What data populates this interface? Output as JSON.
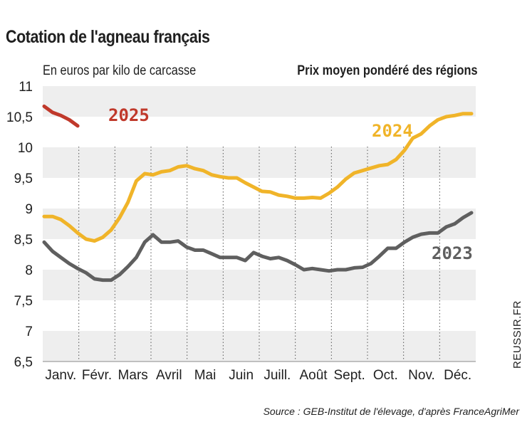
{
  "header": {
    "title": "Cotation de l'agneau français",
    "subtitle_left": "En euros par kilo de carcasse",
    "subtitle_right": "Prix moyen pondéré des régions"
  },
  "footer": {
    "source": "Source : GEB-Institut de l'élevage, d'après FranceAgriMer",
    "credit": "REUSSIR.FR"
  },
  "colors": {
    "s2023": "#5f5f5f",
    "s2024": "#f0b429",
    "s2025": "#c0392b",
    "band": "#eeeeee"
  },
  "chart_data": {
    "type": "line",
    "title": "Cotation de l'agneau français",
    "ylabel": "En euros par kilo de carcasse",
    "xlabel": "",
    "ylim": [
      6.5,
      11
    ],
    "yticks": [
      11,
      10.5,
      10,
      9.5,
      9,
      8.5,
      8,
      7.5,
      7,
      6.5
    ],
    "ytick_labels": [
      "11",
      "10,5",
      "10",
      "9,5",
      "9",
      "8,5",
      "8",
      "7,5",
      "7",
      "6,5"
    ],
    "categories": [
      "Janv.",
      "Févr.",
      "Mars",
      "Avril",
      "Mai",
      "Juin",
      "Juill.",
      "Août",
      "Sept.",
      "Oct.",
      "Nov.",
      "Déc."
    ],
    "x_unit": "week",
    "xlim": [
      1,
      52
    ],
    "series": [
      {
        "name": "2023",
        "label": "2023",
        "x": [
          1,
          2,
          3,
          4,
          5,
          6,
          7,
          8,
          9,
          10,
          11,
          12,
          13,
          14,
          15,
          16,
          17,
          18,
          19,
          20,
          21,
          22,
          23,
          24,
          25,
          26,
          27,
          28,
          29,
          30,
          31,
          32,
          33,
          34,
          35,
          36,
          37,
          38,
          39,
          40,
          41,
          42,
          43,
          44,
          45,
          46,
          47,
          48,
          49,
          50,
          51,
          52
        ],
        "values": [
          8.45,
          8.3,
          8.2,
          8.1,
          8.02,
          7.95,
          7.85,
          7.83,
          7.83,
          7.92,
          8.05,
          8.2,
          8.45,
          8.57,
          8.45,
          8.45,
          8.47,
          8.37,
          8.32,
          8.32,
          8.26,
          8.2,
          8.2,
          8.2,
          8.15,
          8.28,
          8.22,
          8.18,
          8.2,
          8.15,
          8.08,
          8.0,
          8.02,
          8.0,
          7.98,
          8.0,
          8.0,
          8.03,
          8.04,
          8.1,
          8.22,
          8.35,
          8.35,
          8.45,
          8.53,
          8.58,
          8.6,
          8.6,
          8.7,
          8.75,
          8.85,
          8.93
        ]
      },
      {
        "name": "2024",
        "label": "2024",
        "x": [
          1,
          2,
          3,
          4,
          5,
          6,
          7,
          8,
          9,
          10,
          11,
          12,
          13,
          14,
          15,
          16,
          17,
          18,
          19,
          20,
          21,
          22,
          23,
          24,
          25,
          26,
          27,
          28,
          29,
          30,
          31,
          32,
          33,
          34,
          35,
          36,
          37,
          38,
          39,
          40,
          41,
          42,
          43,
          44,
          45,
          46,
          47,
          48,
          49,
          50,
          51,
          52
        ],
        "values": [
          8.87,
          8.87,
          8.82,
          8.72,
          8.6,
          8.5,
          8.47,
          8.53,
          8.65,
          8.85,
          9.1,
          9.45,
          9.57,
          9.55,
          9.6,
          9.62,
          9.68,
          9.7,
          9.65,
          9.62,
          9.55,
          9.52,
          9.5,
          9.5,
          9.42,
          9.35,
          9.28,
          9.27,
          9.22,
          9.2,
          9.17,
          9.17,
          9.18,
          9.17,
          9.25,
          9.35,
          9.48,
          9.58,
          9.62,
          9.66,
          9.7,
          9.72,
          9.8,
          9.95,
          10.15,
          10.22,
          10.35,
          10.45,
          10.5,
          10.52,
          10.55,
          10.55
        ]
      },
      {
        "name": "2025",
        "label": "2025",
        "x": [
          1,
          2,
          3,
          4,
          5
        ],
        "values": [
          10.67,
          10.57,
          10.52,
          10.45,
          10.35
        ]
      }
    ]
  }
}
